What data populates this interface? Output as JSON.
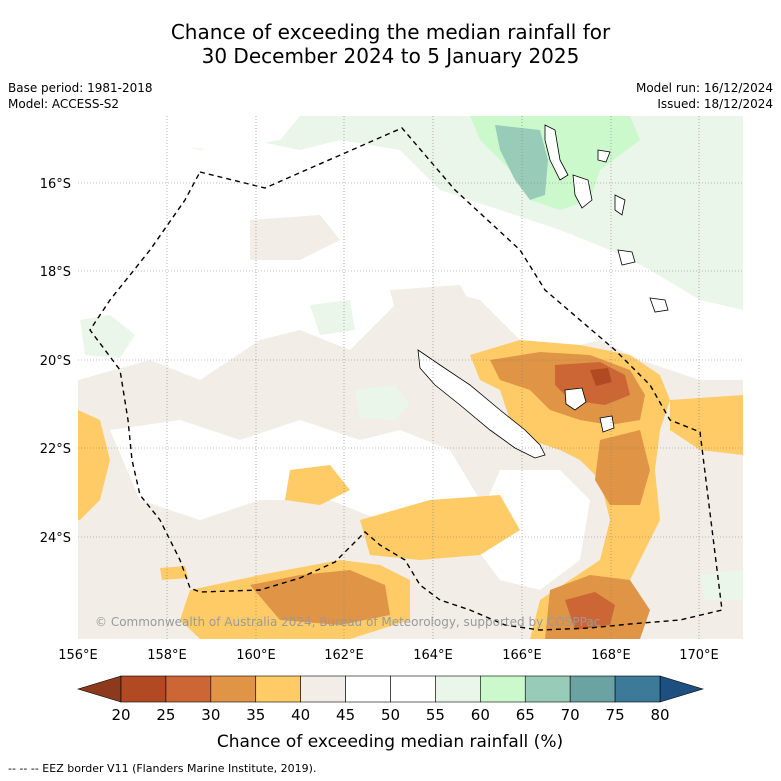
{
  "title": {
    "line1": "Chance of exceeding the median rainfall for",
    "line2": "30 December 2024 to 5 January 2025"
  },
  "meta_left": {
    "base_period": "Base period: 1981-2018",
    "model": "Model: ACCESS-S2"
  },
  "meta_right": {
    "model_run": "Model run: 16/12/2024",
    "issued": "Issued: 18/12/2024"
  },
  "map": {
    "lat_labels": [
      "16°S",
      "18°S",
      "20°S",
      "22°S",
      "24°S"
    ],
    "lon_labels": [
      "156°E",
      "158°E",
      "160°E",
      "162°E",
      "164°E",
      "166°E",
      "168°E",
      "170°E"
    ],
    "copyright": "© Commonwealth of Australia 2024, Bureau of Meteorology, supported by COSPPac",
    "land_color": "#ffffff",
    "eez_style": "dashed"
  },
  "colorbar": {
    "ticks": [
      "20",
      "25",
      "30",
      "35",
      "40",
      "45",
      "50",
      "55",
      "60",
      "65",
      "70",
      "75",
      "80"
    ],
    "colors": [
      "#8c3a1b",
      "#b14a22",
      "#cc6634",
      "#e09446",
      "#fecb66",
      "#f2ede7",
      "#ffffff",
      "#ffffff",
      "#e9f6e9",
      "#ccf9cc",
      "#99ccb8",
      "#6ba3a3",
      "#3d7a99",
      "#1d4f80"
    ],
    "label": "Chance of exceeding median rainfall (%)"
  },
  "footer": {
    "text": "--  --  -- EEZ border V11 (Flanders Marine Institute, 2019)."
  }
}
